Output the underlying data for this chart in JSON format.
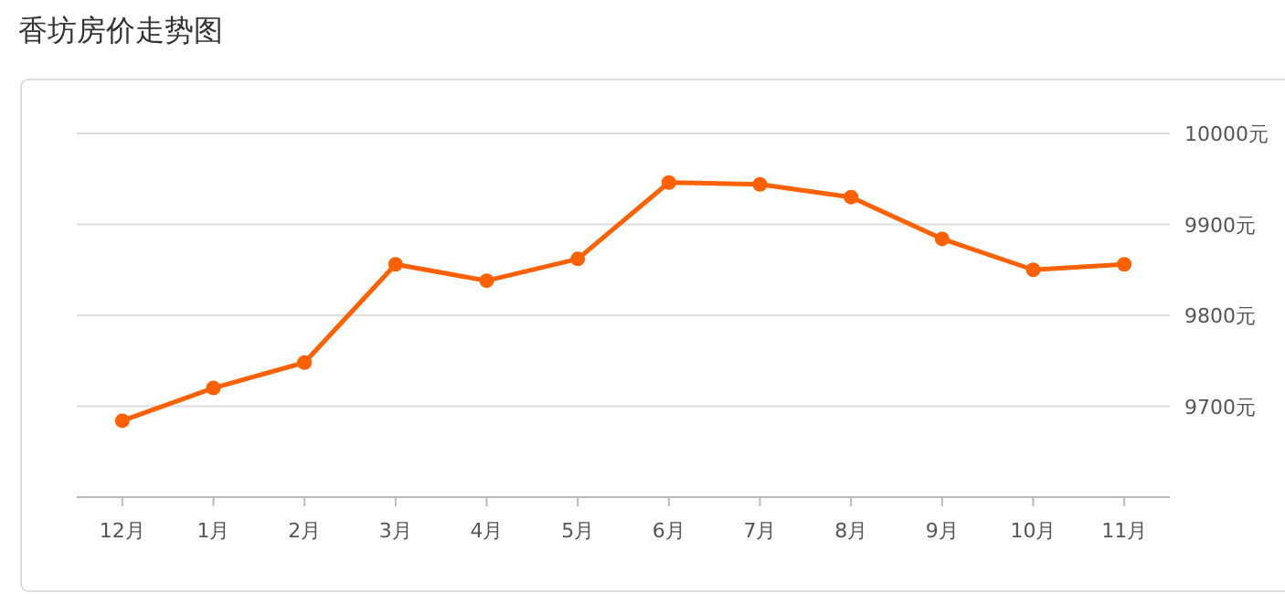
{
  "chart_data": {
    "type": "line",
    "title": "香坊房价走势图",
    "categories": [
      "12月",
      "1月",
      "2月",
      "3月",
      "4月",
      "5月",
      "6月",
      "7月",
      "8月",
      "9月",
      "10月",
      "11月"
    ],
    "series": [
      {
        "color": "#ff6000",
        "values": [
          9684,
          9720,
          9748,
          9856,
          9838,
          9862,
          9946,
          9944,
          9930,
          9884,
          9850,
          9856
        ]
      }
    ],
    "ylim": [
      9600,
      10000
    ],
    "yticks": [
      {
        "value": 9700,
        "label": "9700元"
      },
      {
        "value": 9800,
        "label": "9800元"
      },
      {
        "value": 9900,
        "label": "9900元"
      },
      {
        "value": 10000,
        "label": "10000元"
      }
    ],
    "grid": "y",
    "marker": "circle",
    "line_style": "solid"
  }
}
